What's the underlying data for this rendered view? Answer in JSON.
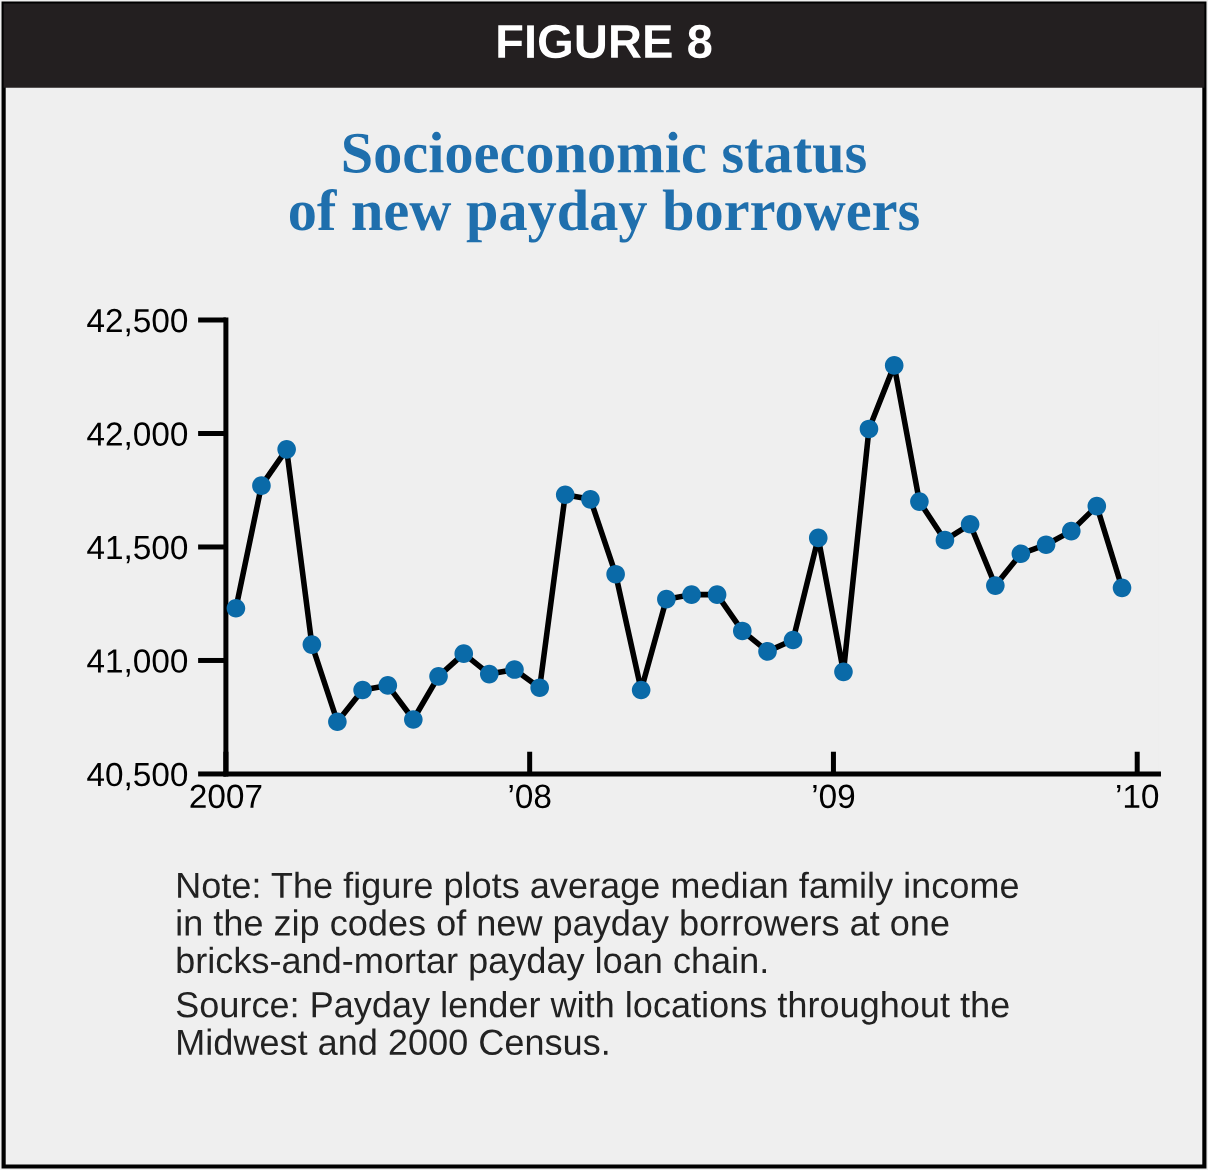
{
  "chart_data": {
    "type": "line",
    "title": "Socioeconomic status\nof new payday borrowers",
    "annotations": [
      "FIGURE 8",
      "Note: The figure plots average median family income\nin the zip codes of new payday borrowers at one\nbricks-and-mortar payday loan chain.",
      "Source: Payday lender with locations throughout the\nMidwest and 2000 Census."
    ],
    "x": [
      2007.033,
      2007.117,
      2007.2,
      2007.283,
      2007.367,
      2007.45,
      2007.533,
      2007.617,
      2007.7,
      2007.783,
      2007.867,
      2007.95,
      2008.033,
      2008.117,
      2008.2,
      2008.283,
      2008.367,
      2008.45,
      2008.533,
      2008.617,
      2008.7,
      2008.783,
      2008.867,
      2008.95,
      2009.033,
      2009.117,
      2009.2,
      2009.283,
      2009.367,
      2009.45,
      2009.533,
      2009.617,
      2009.7,
      2009.783,
      2009.867,
      2009.95
    ],
    "series": [
      {
        "color": "#0a6aa8",
        "values": [
          41230,
          41770,
          41930,
          41070,
          40730,
          40870,
          40890,
          40740,
          40930,
          41030,
          40940,
          40960,
          40880,
          41730,
          41710,
          41380,
          40870,
          41270,
          41290,
          41290,
          41130,
          41040,
          41090,
          41540,
          40950,
          42020,
          42300,
          41700,
          41530,
          41600,
          41330,
          41470,
          41510,
          41570,
          41680,
          41320
        ]
      }
    ],
    "xlim": [
      2007,
      2010.07
    ],
    "xticks": [
      {
        "value": 2007,
        "label": "2007"
      },
      {
        "value": 2008,
        "label": "’08"
      },
      {
        "value": 2009,
        "label": "’09"
      },
      {
        "value": 2010,
        "label": "’10"
      }
    ],
    "ylim": [
      40500,
      42500
    ],
    "yticks": [
      {
        "value": 40500,
        "label": "40,500"
      },
      {
        "value": 41000,
        "label": "41,000"
      },
      {
        "value": 41500,
        "label": "41,500"
      },
      {
        "value": 42000,
        "label": "42,000"
      },
      {
        "value": 42500,
        "label": "42,500"
      }
    ],
    "grid": false,
    "legend": false,
    "marker": "circle",
    "line_style": "solid"
  }
}
